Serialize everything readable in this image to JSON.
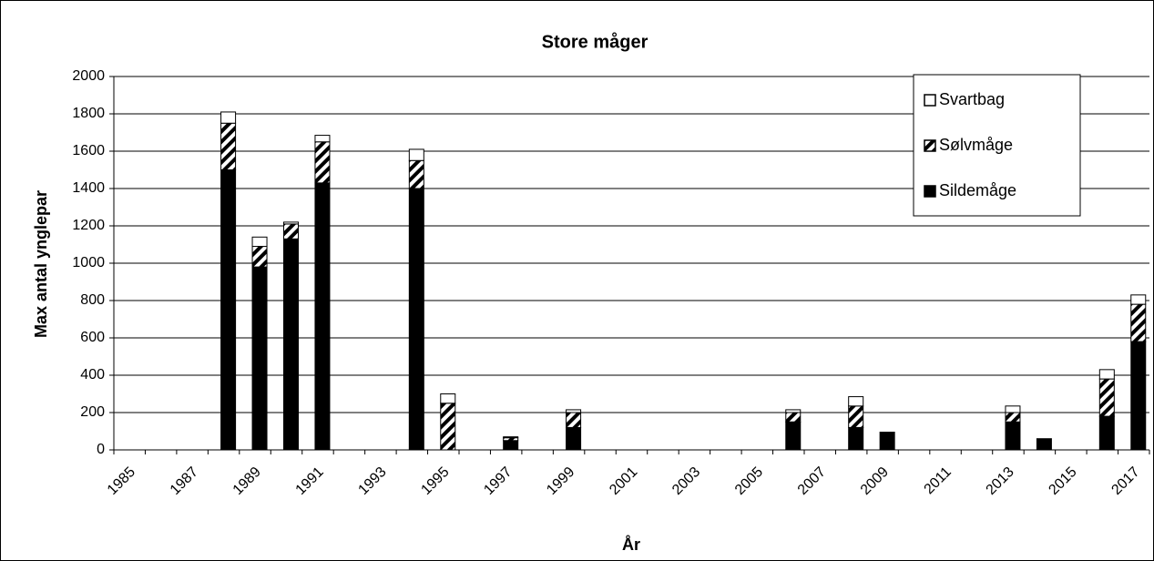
{
  "chart_data": {
    "type": "stacked_bar",
    "title": "Store måger",
    "xlabel": "År",
    "ylabel": "Max antal ynglepar",
    "categories": [
      "1985",
      null,
      "1987",
      null,
      "1989",
      null,
      "1991",
      null,
      "1993",
      null,
      "1995",
      null,
      "1997",
      null,
      "1999",
      null,
      "2001",
      null,
      "2003",
      null,
      "2005",
      null,
      "2007",
      null,
      "2009",
      null,
      "2011",
      null,
      "2013",
      null,
      "2015",
      null,
      "2017"
    ],
    "series": [
      {
        "name": "Sildemåge",
        "color": "#000000",
        "values": [
          null,
          null,
          null,
          1500,
          980,
          1130,
          1430,
          null,
          null,
          1400,
          0,
          null,
          50,
          null,
          120,
          null,
          null,
          null,
          null,
          null,
          null,
          150,
          null,
          120,
          95,
          null,
          null,
          null,
          150,
          60,
          null,
          180,
          580
        ]
      },
      {
        "name": "Sølvmåge",
        "color": "#000000",
        "pattern": "hatch",
        "values": [
          null,
          null,
          null,
          250,
          110,
          80,
          220,
          null,
          null,
          150,
          250,
          null,
          15,
          null,
          80,
          null,
          null,
          null,
          null,
          null,
          null,
          50,
          null,
          115,
          0,
          null,
          null,
          null,
          50,
          0,
          null,
          200,
          200
        ]
      },
      {
        "name": "Svartbag",
        "color": "#ffffff",
        "values": [
          null,
          null,
          null,
          60,
          50,
          10,
          35,
          null,
          null,
          60,
          50,
          null,
          5,
          null,
          15,
          null,
          null,
          null,
          null,
          null,
          null,
          15,
          null,
          50,
          0,
          null,
          null,
          null,
          35,
          0,
          null,
          50,
          50
        ]
      }
    ],
    "ylim": [
      0,
      2000
    ],
    "yticks": [
      0,
      200,
      400,
      600,
      800,
      1000,
      1200,
      1400,
      1600,
      1800,
      2000
    ],
    "grid": true,
    "legend": "upper right"
  }
}
